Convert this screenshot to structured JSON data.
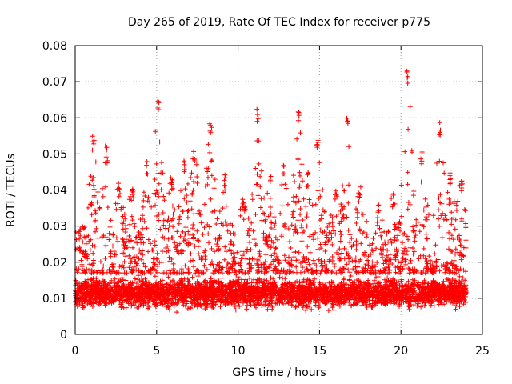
{
  "chart_data": {
    "type": "scatter",
    "title": "Day 265 of 2019, Rate Of TEC Index for receiver p775",
    "xlabel": "GPS time / hours",
    "ylabel": "ROTI / TECUs",
    "xlim": [
      0,
      25
    ],
    "ylim": [
      0,
      0.08
    ],
    "xticks": [
      "0",
      "5",
      "10",
      "15",
      "20",
      "25"
    ],
    "yticks": [
      "0",
      "0.01",
      "0.02",
      "0.03",
      "0.04",
      "0.05",
      "0.06",
      "0.07",
      "0.08"
    ],
    "grid": true,
    "marker": "+",
    "color": "#ff0000",
    "data_range_x": [
      0,
      24
    ],
    "baseline_band": [
      0.006,
      0.017
    ],
    "peaks": [
      {
        "x": 0.3,
        "y": 0.03
      },
      {
        "x": 1.1,
        "y": 0.055
      },
      {
        "x": 1.9,
        "y": 0.053
      },
      {
        "x": 2.7,
        "y": 0.042
      },
      {
        "x": 3.5,
        "y": 0.041
      },
      {
        "x": 4.4,
        "y": 0.048
      },
      {
        "x": 5.1,
        "y": 0.066
      },
      {
        "x": 5.9,
        "y": 0.044
      },
      {
        "x": 6.7,
        "y": 0.049
      },
      {
        "x": 7.3,
        "y": 0.052
      },
      {
        "x": 8.3,
        "y": 0.059
      },
      {
        "x": 9.2,
        "y": 0.045
      },
      {
        "x": 10.3,
        "y": 0.039
      },
      {
        "x": 11.2,
        "y": 0.063
      },
      {
        "x": 12.0,
        "y": 0.046
      },
      {
        "x": 12.8,
        "y": 0.047
      },
      {
        "x": 13.7,
        "y": 0.062
      },
      {
        "x": 14.3,
        "y": 0.045
      },
      {
        "x": 14.9,
        "y": 0.055
      },
      {
        "x": 16.0,
        "y": 0.04
      },
      {
        "x": 16.7,
        "y": 0.06
      },
      {
        "x": 17.5,
        "y": 0.041
      },
      {
        "x": 18.6,
        "y": 0.036
      },
      {
        "x": 19.5,
        "y": 0.039
      },
      {
        "x": 20.4,
        "y": 0.073
      },
      {
        "x": 21.3,
        "y": 0.051
      },
      {
        "x": 22.4,
        "y": 0.059
      },
      {
        "x": 23.0,
        "y": 0.045
      },
      {
        "x": 23.7,
        "y": 0.043
      }
    ]
  }
}
